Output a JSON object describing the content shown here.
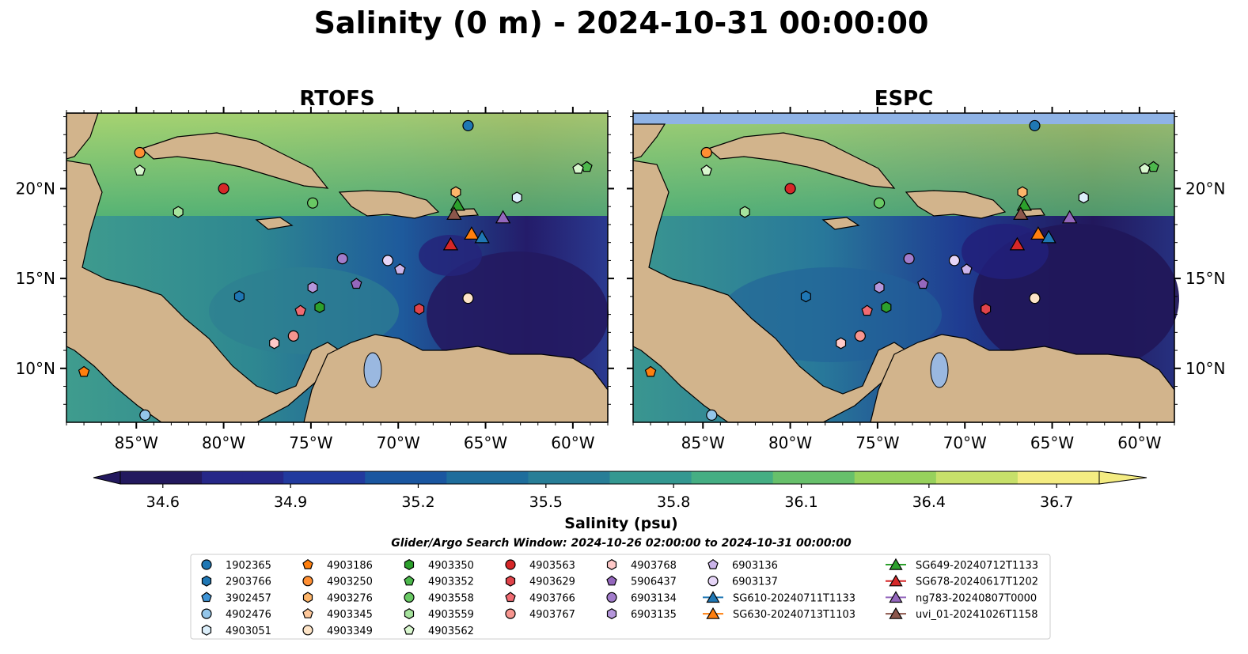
{
  "figure": {
    "title": "Salinity (0 m) - 2024-10-31 00:00:00",
    "search_window": "Glider/Argo Search Window: 2024-10-26 02:00:00 to 2024-10-31 00:00:00",
    "land_color": "#d2b48c",
    "lake_color": "#9ab8e0"
  },
  "chart_data": {
    "type": "heatmap",
    "panels": [
      {
        "title": "RTOFS",
        "lat_ticks_side": "left"
      },
      {
        "title": "ESPC",
        "lat_ticks_side": "right"
      }
    ],
    "xlim": [
      -89,
      -58
    ],
    "ylim": [
      7,
      24.2
    ],
    "x_ticks": [
      -85,
      -80,
      -75,
      -70,
      -65,
      -60
    ],
    "x_tick_labels": [
      "85°W",
      "80°W",
      "75°W",
      "70°W",
      "65°W",
      "60°W"
    ],
    "y_ticks": [
      10,
      15,
      20
    ],
    "y_tick_labels": [
      "10°N",
      "15°N",
      "20°N"
    ],
    "colorbar": {
      "label": "Salinity (psu)",
      "vmin": 34.5,
      "vmax": 36.8,
      "ticks": [
        "34.6",
        "34.9",
        "35.2",
        "35.5",
        "35.8",
        "36.1",
        "36.4",
        "36.7"
      ],
      "extend": "both",
      "colors": [
        "#23195e",
        "#262788",
        "#223a9e",
        "#1a56a0",
        "#1e6d9c",
        "#287e97",
        "#349891",
        "#45ae83",
        "#67c06b",
        "#97d15c",
        "#c7e06a",
        "#f4ec82"
      ]
    },
    "legend": {
      "columns": [
        [
          {
            "label": "1902365",
            "marker": "circle",
            "color": "#1f77b4"
          },
          {
            "label": "2903766",
            "marker": "hexagon",
            "color": "#1f77b4"
          },
          {
            "label": "3902457",
            "marker": "pentagon",
            "color": "#3f94d6"
          },
          {
            "label": "4902476",
            "marker": "circle",
            "color": "#94c6ea"
          },
          {
            "label": "4903051",
            "marker": "hexagon",
            "color": "#dbeefa"
          }
        ],
        [
          {
            "label": "4903186",
            "marker": "pentagon",
            "color": "#ff7f0e"
          },
          {
            "label": "4903250",
            "marker": "circle",
            "color": "#ff8f33"
          },
          {
            "label": "4903276",
            "marker": "hexagon",
            "color": "#fdb56a"
          },
          {
            "label": "4903345",
            "marker": "pentagon",
            "color": "#fdc79a"
          },
          {
            "label": "4903349",
            "marker": "circle",
            "color": "#fde4c7"
          }
        ],
        [
          {
            "label": "4903350",
            "marker": "hexagon",
            "color": "#2ca02c"
          },
          {
            "label": "4903352",
            "marker": "pentagon",
            "color": "#4cb84c"
          },
          {
            "label": "4903558",
            "marker": "circle",
            "color": "#69c964"
          },
          {
            "label": "4903559",
            "marker": "hexagon",
            "color": "#a6e39d"
          },
          {
            "label": "4903562",
            "marker": "pentagon",
            "color": "#d9f7cf"
          }
        ],
        [
          {
            "label": "4903563",
            "marker": "circle",
            "color": "#d62728"
          },
          {
            "label": "4903629",
            "marker": "hexagon",
            "color": "#e0434a"
          },
          {
            "label": "4903766",
            "marker": "pentagon",
            "color": "#f06b72"
          },
          {
            "label": "4903767",
            "marker": "circle",
            "color": "#f7958f"
          }
        ],
        [
          {
            "label": "4903768",
            "marker": "hexagon",
            "color": "#ffc9c8"
          },
          {
            "label": "5906437",
            "marker": "pentagon",
            "color": "#9467bd"
          },
          {
            "label": "6903134",
            "marker": "circle",
            "color": "#a27ccb"
          },
          {
            "label": "6903135",
            "marker": "hexagon",
            "color": "#b596db"
          }
        ],
        [
          {
            "label": "6903136",
            "marker": "pentagon",
            "color": "#cbb4ea"
          },
          {
            "label": "6903137",
            "marker": "circle",
            "color": "#e6d5f7"
          },
          {
            "label": "SG610-20240711T1133",
            "marker": "triangle",
            "color": "#1f77b4"
          },
          {
            "label": "SG630-20240713T1103",
            "marker": "triangle",
            "color": "#ff7f0e"
          }
        ],
        [
          {
            "label": "SG649-20240712T1133",
            "marker": "triangle",
            "color": "#2ca02c"
          },
          {
            "label": "SG678-20240617T1202",
            "marker": "triangle",
            "color": "#d62728"
          },
          {
            "label": "ng783-20240807T0000",
            "marker": "triangle",
            "color": "#9467bd"
          },
          {
            "label": "uvi_01-20241026T1158",
            "marker": "triangle",
            "color": "#8c564b"
          }
        ]
      ]
    },
    "platforms": [
      {
        "label": "1902365",
        "lon": -66.0,
        "lat": 23.5
      },
      {
        "label": "4903250",
        "lon": -84.8,
        "lat": 22.0
      },
      {
        "label": "4903562",
        "lon": -84.8,
        "lat": 21.0
      },
      {
        "label": "4903559",
        "lon": -82.6,
        "lat": 18.7
      },
      {
        "label": "4903563",
        "lon": -80.0,
        "lat": 20.0
      },
      {
        "label": "4903558",
        "lon": -74.9,
        "lat": 19.2
      },
      {
        "label": "4903276",
        "lon": -66.7,
        "lat": 19.8
      },
      {
        "label": "4903051",
        "lon": -63.2,
        "lat": 19.5
      },
      {
        "label": "4903352",
        "lon": -59.2,
        "lat": 21.2
      },
      {
        "label": "4903562",
        "lon": -59.7,
        "lat": 21.1
      },
      {
        "label": "2903766",
        "lon": -79.1,
        "lat": 14.0
      },
      {
        "label": "6903135",
        "lon": -74.9,
        "lat": 14.5
      },
      {
        "label": "5906437",
        "lon": -72.4,
        "lat": 14.7
      },
      {
        "label": "6903134",
        "lon": -73.2,
        "lat": 16.1
      },
      {
        "label": "6903137",
        "lon": -70.6,
        "lat": 16.0
      },
      {
        "label": "6903136",
        "lon": -69.9,
        "lat": 15.5
      },
      {
        "label": "4903350",
        "lon": -74.5,
        "lat": 13.4
      },
      {
        "label": "4903766",
        "lon": -75.6,
        "lat": 13.2
      },
      {
        "label": "4903629",
        "lon": -68.8,
        "lat": 13.3
      },
      {
        "label": "4903349",
        "lon": -66.0,
        "lat": 13.9
      },
      {
        "label": "4903767",
        "lon": -76.0,
        "lat": 11.8
      },
      {
        "label": "4903768",
        "lon": -77.1,
        "lat": 11.4
      },
      {
        "label": "4903186",
        "lon": -88.0,
        "lat": 9.8
      },
      {
        "label": "4902476",
        "lon": -84.5,
        "lat": 7.4
      },
      {
        "label": "SG649-20240712T1133",
        "lon": -66.6,
        "lat": 19.1
      },
      {
        "label": "uvi_01-20241026T1158",
        "lon": -66.8,
        "lat": 18.6
      },
      {
        "label": "SG630-20240713T1103",
        "lon": -65.8,
        "lat": 17.5
      },
      {
        "label": "SG678-20240617T1202",
        "lon": -67.0,
        "lat": 16.9
      },
      {
        "label": "SG610-20240711T1133",
        "lon": -65.2,
        "lat": 17.3
      },
      {
        "label": "ng783-20240807T0000",
        "lon": -64.0,
        "lat": 18.4
      }
    ]
  }
}
